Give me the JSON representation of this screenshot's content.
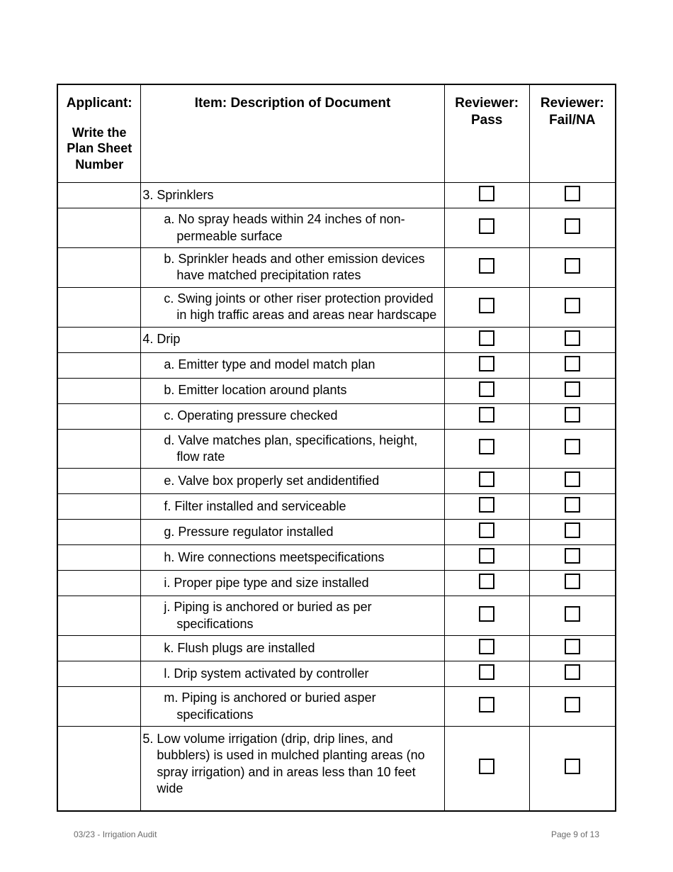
{
  "header": {
    "applicant_label": "Applicant:",
    "applicant_sub": "Write the Plan Sheet Number",
    "item_label": "Item: Description of Document",
    "pass_label": "Reviewer: Pass",
    "fail_label": "Reviewer: Fail/NA"
  },
  "rows": [
    {
      "text": "3. Sprinklers",
      "indent": 0
    },
    {
      "text": "a. No spray heads within 24 inches of non-permeable surface",
      "indent": 1
    },
    {
      "text": "b. Sprinkler heads and other emission devices have matched precipitation rates",
      "indent": 1
    },
    {
      "text": "c. Swing joints or other riser protection provided in high traffic areas and areas near hardscape",
      "indent": 1
    },
    {
      "text": "4. Drip",
      "indent": 0
    },
    {
      "text": "a. Emitter type and model match plan",
      "indent": 1
    },
    {
      "text": "b. Emitter location around plants",
      "indent": 1
    },
    {
      "text": "c. Operating pressure checked",
      "indent": 1
    },
    {
      "text": "d. Valve matches plan, specifications, height, flow rate",
      "indent": 1
    },
    {
      "text": "e. Valve box properly set andidentified",
      "indent": 1
    },
    {
      "text": "f. Filter installed and serviceable",
      "indent": 1
    },
    {
      "text": "g. Pressure regulator installed",
      "indent": 1
    },
    {
      "text": "h. Wire connections meetspecifications",
      "indent": 1
    },
    {
      "text": "i. Proper pipe type and size installed",
      "indent": 1
    },
    {
      "text": "j. Piping is anchored or buried as per specifications",
      "indent": 1
    },
    {
      "text": "k. Flush plugs are installed",
      "indent": 1
    },
    {
      "text": "l.   Drip system activated by controller",
      "indent": 1
    },
    {
      "text": "m. Piping is anchored or buried asper specifications",
      "indent": 1
    },
    {
      "text": "5. Low volume irrigation (drip, drip lines, and bubblers) is used in mulched planting areas (no spray irrigation) and in areas less than 10 feet wide",
      "indent": 0,
      "special": "five"
    }
  ],
  "footer": {
    "left": "03/23 - Irrigation Audit",
    "right": "Page 9 of 13"
  },
  "style": {
    "checkbox_border": "#000000",
    "text_color": "#000000",
    "footer_color": "#6a6a6a",
    "background": "#ffffff"
  }
}
